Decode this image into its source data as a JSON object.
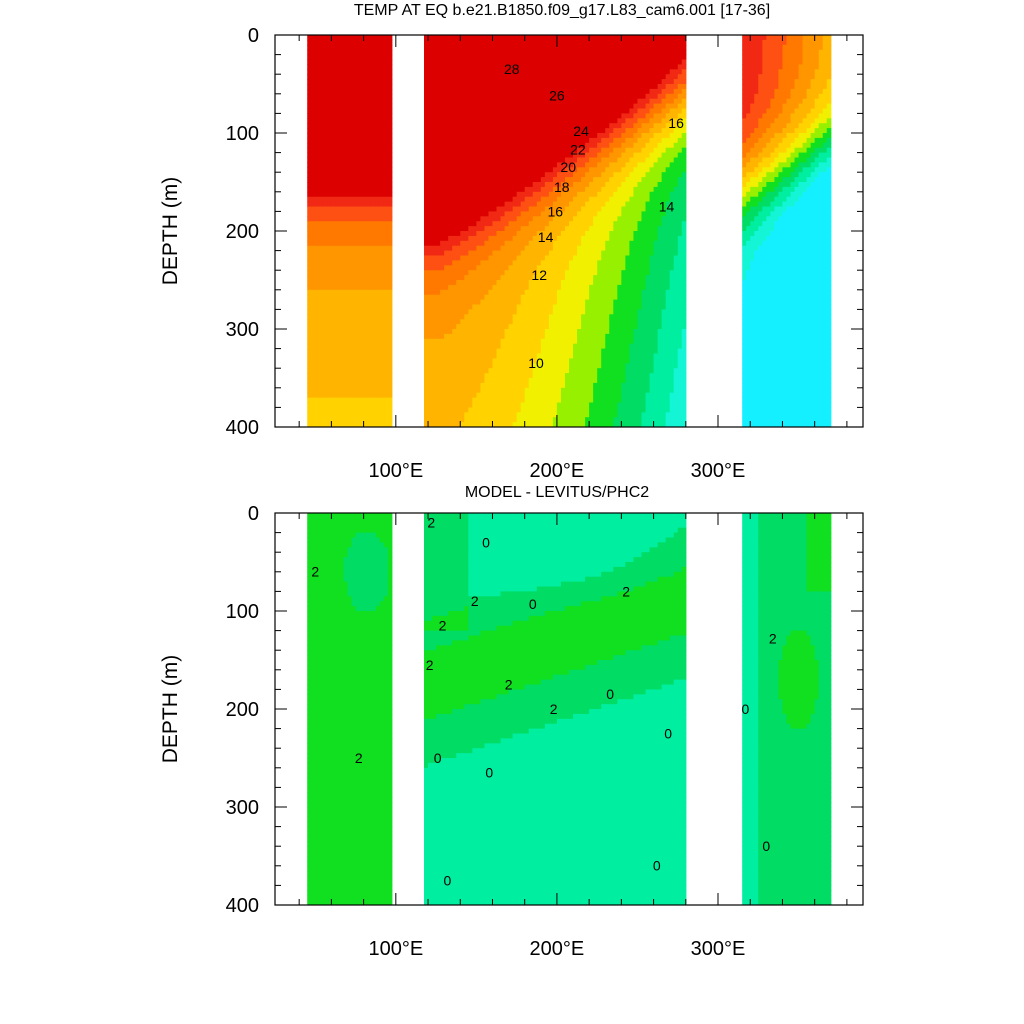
{
  "chart_data": [
    {
      "type": "heatmap",
      "subtype": "filled-contour",
      "title": "TEMP AT EQ b.e21.B1850.f09_g17.L83_cam6.001 [17-36]",
      "ylabel": "DEPTH (m)",
      "xlabel": "",
      "x_range": [
        25,
        390
      ],
      "y_range": [
        0,
        400
      ],
      "y_inverted": true,
      "x_ticks": [
        100,
        200,
        300
      ],
      "x_tick_labels": [
        "100°E",
        "200°E",
        "300°E"
      ],
      "y_ticks": [
        0,
        100,
        200,
        300,
        400
      ],
      "y_tick_labels": [
        "0",
        "100",
        "200",
        "300",
        "400"
      ],
      "data_x_range": [
        45,
        370
      ],
      "land_masks": [
        [
          98,
          118
        ],
        [
          279,
          315
        ]
      ],
      "contour_interval": 1,
      "contour_labels": [
        {
          "text": "28",
          "x": 172,
          "y": 40
        },
        {
          "text": "26",
          "x": 200,
          "y": 67
        },
        {
          "text": "24",
          "x": 215,
          "y": 103
        },
        {
          "text": "22",
          "x": 213,
          "y": 122
        },
        {
          "text": "20",
          "x": 207,
          "y": 140
        },
        {
          "text": "18",
          "x": 203,
          "y": 160
        },
        {
          "text": "16",
          "x": 199,
          "y": 185
        },
        {
          "text": "14",
          "x": 193,
          "y": 211
        },
        {
          "text": "12",
          "x": 189,
          "y": 250
        },
        {
          "text": "10",
          "x": 187,
          "y": 340
        },
        {
          "text": "16",
          "x": 274,
          "y": 95
        },
        {
          "text": "14",
          "x": 268,
          "y": 180
        }
      ],
      "colors": [
        "#0000c8",
        "#0050ff",
        "#0e8cff",
        "#1ab4ff",
        "#24d0ff",
        "#14f0ff",
        "#14f5d6",
        "#00eea0",
        "#00dc64",
        "#10e020",
        "#96f000",
        "#f0f000",
        "#ffd200",
        "#ffb400",
        "#ff9600",
        "#ff7800",
        "#ff5014",
        "#f02814",
        "#dc0000"
      ],
      "grid": false,
      "legend": "none"
    },
    {
      "type": "heatmap",
      "subtype": "filled-contour",
      "title": "MODEL - LEVITUS/PHC2",
      "ylabel": "DEPTH (m)",
      "xlabel": "",
      "x_range": [
        25,
        390
      ],
      "y_range": [
        0,
        400
      ],
      "y_inverted": true,
      "x_ticks": [
        100,
        200,
        300
      ],
      "x_tick_labels": [
        "100°E",
        "200°E",
        "300°E"
      ],
      "y_ticks": [
        0,
        100,
        200,
        300,
        400
      ],
      "y_tick_labels": [
        "0",
        "100",
        "200",
        "300",
        "400"
      ],
      "data_x_range": [
        45,
        370
      ],
      "land_masks": [
        [
          98,
          118
        ],
        [
          279,
          315
        ]
      ],
      "contour_interval": 1,
      "contour_labels": [
        {
          "text": "2",
          "x": 50,
          "y": 65
        },
        {
          "text": "2",
          "x": 77,
          "y": 255
        },
        {
          "text": "2",
          "x": 122,
          "y": 15
        },
        {
          "text": "2",
          "x": 121,
          "y": 160
        },
        {
          "text": "2",
          "x": 129,
          "y": 120
        },
        {
          "text": "2",
          "x": 149,
          "y": 95
        },
        {
          "text": "2",
          "x": 170,
          "y": 180
        },
        {
          "text": "2",
          "x": 198,
          "y": 205
        },
        {
          "text": "2",
          "x": 243,
          "y": 85
        },
        {
          "text": "2",
          "x": 334,
          "y": 133
        },
        {
          "text": "0",
          "x": 156,
          "y": 35
        },
        {
          "text": "0",
          "x": 185,
          "y": 98
        },
        {
          "text": "0",
          "x": 158,
          "y": 270
        },
        {
          "text": "0",
          "x": 126,
          "y": 255
        },
        {
          "text": "0",
          "x": 132,
          "y": 380
        },
        {
          "text": "0",
          "x": 233,
          "y": 190
        },
        {
          "text": "0",
          "x": 269,
          "y": 230
        },
        {
          "text": "0",
          "x": 262,
          "y": 365
        },
        {
          "text": "0",
          "x": 317,
          "y": 205
        },
        {
          "text": "0",
          "x": 330,
          "y": 345
        }
      ],
      "colors": [
        "#1ab4ff",
        "#24d0ff",
        "#14f0ff",
        "#14f5d6",
        "#00eea0",
        "#00dc64",
        "#10e020",
        "#96f000",
        "#f0f000"
      ],
      "grid": false,
      "legend": "none"
    }
  ]
}
